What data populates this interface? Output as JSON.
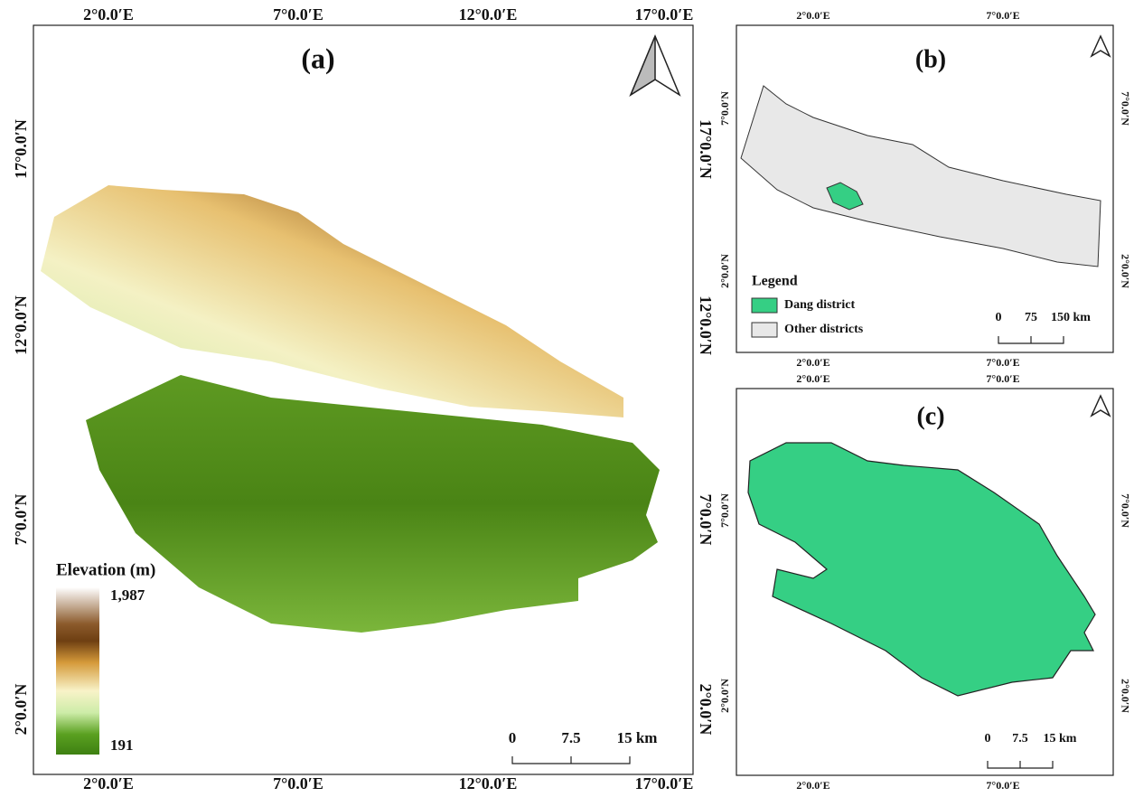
{
  "panels": [
    {
      "label": "(a)",
      "top_labels": [
        "2°0.0′E",
        "7°0.0′E",
        "12°0.0′E",
        "17°0.0′E"
      ],
      "bottom_labels": [
        "2°0.0′E",
        "7°0.0′E",
        "12°0.0′E",
        "17°0.0′E"
      ],
      "left_labels": [
        "17°0.0′N",
        "12°0.0′N",
        "7°0.0′N",
        "2°0.0′N"
      ],
      "right_labels": [
        "17°0.0′N",
        "12°0.0′N",
        "7°0.0′N",
        "2°0.0′N"
      ],
      "elevation_legend": {
        "title": "Elevation (m)",
        "max": "1,987",
        "min": "191"
      },
      "scale_bar": [
        "0",
        "7.5",
        "15 km"
      ]
    },
    {
      "label": "(b)",
      "top_labels": [
        "2°0.0′E",
        "7°0.0′E"
      ],
      "bottom_labels": [
        "2°0.0′E",
        "7°0.0′E"
      ],
      "left_labels": [
        "7°0.0′N",
        "2°0.0′N"
      ],
      "right_labels": [
        "7°0.0′N",
        "2°0.0′N"
      ],
      "legend": {
        "title": "Legend",
        "items": [
          "Dang district",
          "Other districts"
        ]
      },
      "scale_bar": [
        "0",
        "75",
        "150 km"
      ]
    },
    {
      "label": "(c)",
      "top_labels": [
        "2°0.0′E",
        "7°0.0′E"
      ],
      "bottom_labels": [
        "2°0.0′E",
        "7°0.0′E"
      ],
      "left_labels": [
        "7°0.0′N",
        "2°0.0′N"
      ],
      "right_labels": [
        "7°0.0′N",
        "2°0.0′N"
      ],
      "scale_bar": [
        "0",
        "7.5",
        "15 km"
      ]
    }
  ]
}
